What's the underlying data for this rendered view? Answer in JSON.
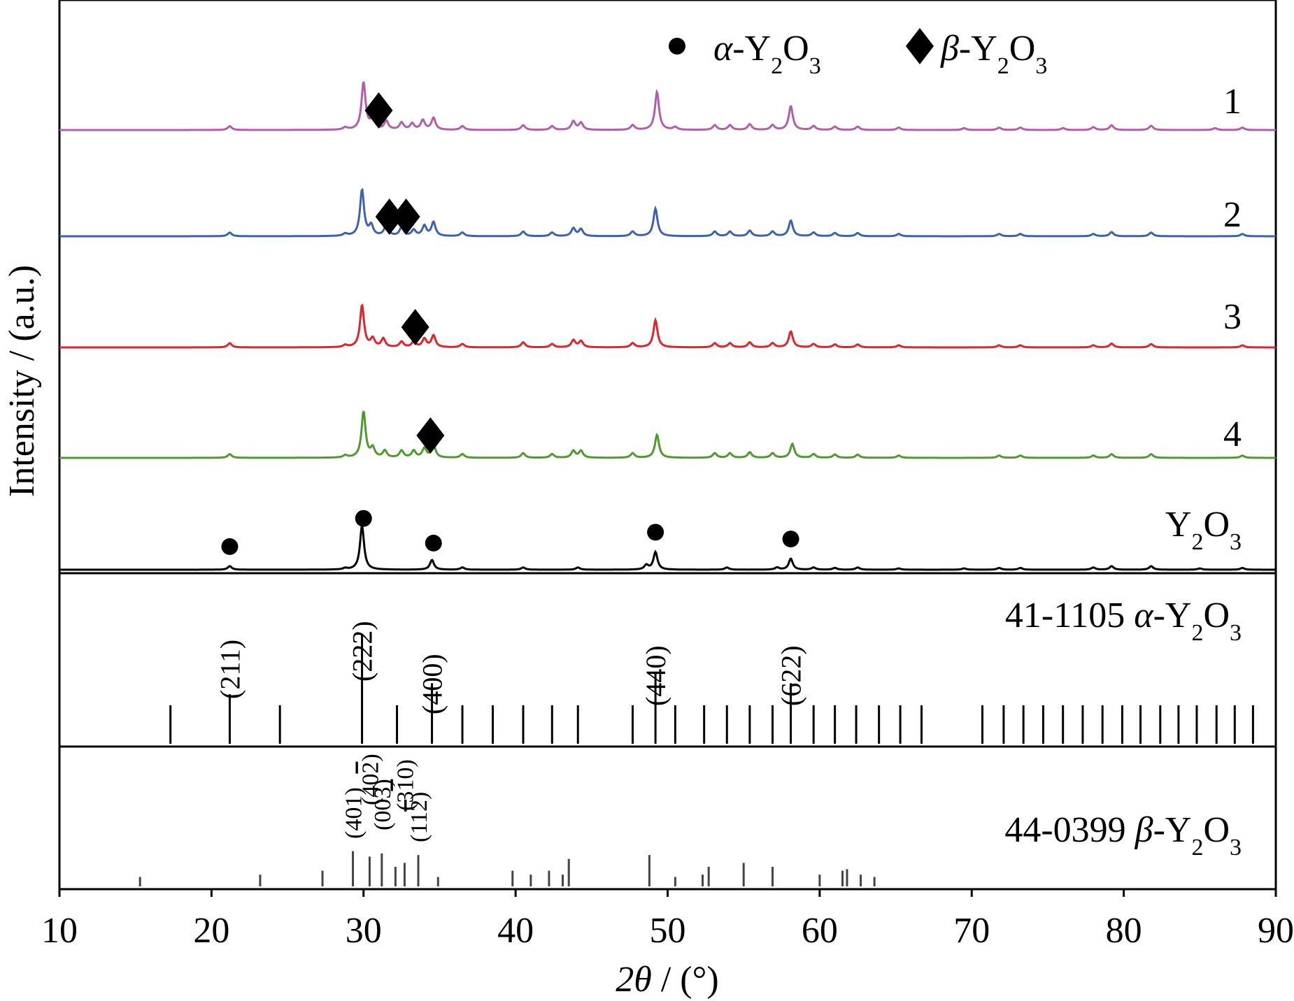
{
  "chart_data": {
    "type": "line",
    "title": "",
    "xlabel_prefix": "2",
    "xlabel_symbol": "θ",
    "xlabel_suffix": " / (°)",
    "ylabel": "Intensity / (a.u.)",
    "xlim": [
      10,
      90
    ],
    "xticks": [
      10,
      20,
      30,
      40,
      50,
      60,
      70,
      80,
      90
    ],
    "legend": {
      "position": "top-center",
      "entries": [
        {
          "marker": "circle",
          "symbol": "α",
          "text": "-Y",
          "sub1": "2",
          "mid": "O",
          "sub2": "3"
        },
        {
          "marker": "diamond",
          "symbol": "β",
          "text": "-Y",
          "sub1": "2",
          "mid": "O",
          "sub2": "3"
        }
      ]
    },
    "series": [
      {
        "name": "1",
        "color": "#b35ea9",
        "peaks": [
          [
            21.2,
            0.08
          ],
          [
            28.8,
            0.05
          ],
          [
            30.0,
            1.0
          ],
          [
            30.6,
            0.25
          ],
          [
            31.5,
            0.18
          ],
          [
            32.5,
            0.15
          ],
          [
            33.2,
            0.13
          ],
          [
            33.9,
            0.2
          ],
          [
            34.6,
            0.25
          ],
          [
            36.5,
            0.08
          ],
          [
            40.5,
            0.1
          ],
          [
            42.4,
            0.08
          ],
          [
            43.8,
            0.18
          ],
          [
            44.3,
            0.15
          ],
          [
            47.7,
            0.1
          ],
          [
            49.3,
            0.8
          ],
          [
            50.5,
            0.06
          ],
          [
            53.1,
            0.1
          ],
          [
            54.1,
            0.1
          ],
          [
            55.4,
            0.12
          ],
          [
            56.9,
            0.1
          ],
          [
            58.1,
            0.5
          ],
          [
            59.6,
            0.08
          ],
          [
            61.0,
            0.07
          ],
          [
            62.5,
            0.07
          ],
          [
            65.2,
            0.05
          ],
          [
            69.5,
            0.04
          ],
          [
            71.8,
            0.05
          ],
          [
            73.2,
            0.05
          ],
          [
            76.0,
            0.04
          ],
          [
            78.0,
            0.06
          ],
          [
            79.2,
            0.1
          ],
          [
            81.8,
            0.09
          ],
          [
            86.0,
            0.04
          ],
          [
            87.8,
            0.05
          ]
        ],
        "markers": [
          {
            "type": "diamond",
            "x": 31.0
          }
        ]
      },
      {
        "name": "2",
        "color": "#3d62ad",
        "peaks": [
          [
            21.2,
            0.08
          ],
          [
            28.8,
            0.05
          ],
          [
            29.9,
            1.0
          ],
          [
            30.5,
            0.22
          ],
          [
            31.5,
            0.25
          ],
          [
            32.5,
            0.18
          ],
          [
            33.3,
            0.13
          ],
          [
            34.0,
            0.22
          ],
          [
            34.6,
            0.3
          ],
          [
            36.5,
            0.08
          ],
          [
            40.5,
            0.1
          ],
          [
            42.4,
            0.08
          ],
          [
            43.8,
            0.17
          ],
          [
            44.3,
            0.15
          ],
          [
            47.7,
            0.1
          ],
          [
            49.2,
            0.6
          ],
          [
            53.1,
            0.1
          ],
          [
            54.1,
            0.1
          ],
          [
            55.4,
            0.12
          ],
          [
            56.9,
            0.1
          ],
          [
            58.1,
            0.34
          ],
          [
            59.6,
            0.08
          ],
          [
            61.0,
            0.07
          ],
          [
            62.5,
            0.07
          ],
          [
            65.2,
            0.05
          ],
          [
            71.8,
            0.05
          ],
          [
            73.2,
            0.05
          ],
          [
            78.0,
            0.05
          ],
          [
            79.2,
            0.09
          ],
          [
            81.8,
            0.08
          ],
          [
            87.8,
            0.05
          ]
        ],
        "markers": [
          {
            "type": "diamond",
            "x": 31.7
          },
          {
            "type": "diamond",
            "x": 32.8
          }
        ]
      },
      {
        "name": "3",
        "color": "#e1242c",
        "peaks": [
          [
            21.2,
            0.1
          ],
          [
            28.8,
            0.05
          ],
          [
            29.9,
            1.0
          ],
          [
            30.6,
            0.2
          ],
          [
            31.3,
            0.2
          ],
          [
            32.5,
            0.13
          ],
          [
            33.3,
            0.13
          ],
          [
            34.0,
            0.2
          ],
          [
            34.6,
            0.28
          ],
          [
            36.5,
            0.08
          ],
          [
            40.5,
            0.12
          ],
          [
            42.4,
            0.08
          ],
          [
            43.8,
            0.17
          ],
          [
            44.3,
            0.15
          ],
          [
            47.7,
            0.1
          ],
          [
            49.2,
            0.65
          ],
          [
            53.1,
            0.1
          ],
          [
            54.1,
            0.1
          ],
          [
            55.4,
            0.12
          ],
          [
            56.9,
            0.1
          ],
          [
            58.1,
            0.38
          ],
          [
            59.6,
            0.08
          ],
          [
            61.0,
            0.07
          ],
          [
            62.5,
            0.07
          ],
          [
            65.2,
            0.05
          ],
          [
            71.8,
            0.05
          ],
          [
            73.2,
            0.05
          ],
          [
            78.0,
            0.05
          ],
          [
            79.2,
            0.09
          ],
          [
            81.8,
            0.08
          ],
          [
            87.8,
            0.05
          ]
        ],
        "markers": [
          {
            "type": "diamond",
            "x": 33.4
          }
        ]
      },
      {
        "name": "4",
        "color": "#4f9a2c",
        "peaks": [
          [
            21.2,
            0.08
          ],
          [
            28.8,
            0.05
          ],
          [
            30.0,
            1.0
          ],
          [
            30.6,
            0.2
          ],
          [
            31.4,
            0.15
          ],
          [
            32.5,
            0.15
          ],
          [
            33.3,
            0.15
          ],
          [
            34.0,
            0.2
          ],
          [
            34.6,
            0.28
          ],
          [
            36.5,
            0.08
          ],
          [
            40.5,
            0.1
          ],
          [
            42.4,
            0.08
          ],
          [
            43.8,
            0.15
          ],
          [
            44.3,
            0.15
          ],
          [
            47.7,
            0.1
          ],
          [
            49.3,
            0.5
          ],
          [
            53.1,
            0.1
          ],
          [
            54.1,
            0.1
          ],
          [
            55.4,
            0.12
          ],
          [
            56.9,
            0.1
          ],
          [
            58.2,
            0.3
          ],
          [
            59.6,
            0.08
          ],
          [
            61.0,
            0.07
          ],
          [
            62.5,
            0.07
          ],
          [
            65.2,
            0.05
          ],
          [
            71.8,
            0.05
          ],
          [
            73.2,
            0.05
          ],
          [
            78.0,
            0.05
          ],
          [
            79.2,
            0.08
          ],
          [
            81.8,
            0.08
          ],
          [
            87.8,
            0.05
          ]
        ],
        "markers": [
          {
            "type": "diamond",
            "x": 34.4
          }
        ]
      },
      {
        "name": "Y",
        "name_sub1": "2",
        "name_mid": "O",
        "name_sub2": "3",
        "color": "#000000",
        "peaks": [
          [
            21.2,
            0.08
          ],
          [
            28.8,
            0.03
          ],
          [
            29.9,
            1.0
          ],
          [
            34.5,
            0.22
          ],
          [
            36.5,
            0.05
          ],
          [
            40.5,
            0.05
          ],
          [
            44.1,
            0.05
          ],
          [
            48.6,
            0.1
          ],
          [
            49.2,
            0.4
          ],
          [
            53.9,
            0.05
          ],
          [
            57.2,
            0.05
          ],
          [
            58.1,
            0.25
          ],
          [
            59.6,
            0.05
          ],
          [
            61.0,
            0.04
          ],
          [
            62.5,
            0.05
          ],
          [
            65.2,
            0.03
          ],
          [
            69.5,
            0.03
          ],
          [
            71.8,
            0.04
          ],
          [
            73.2,
            0.04
          ],
          [
            78.0,
            0.05
          ],
          [
            79.2,
            0.08
          ],
          [
            81.8,
            0.08
          ],
          [
            85.0,
            0.03
          ],
          [
            87.8,
            0.04
          ]
        ],
        "markers": [
          {
            "type": "circle",
            "x": 21.2
          },
          {
            "type": "circle",
            "x": 30.0
          },
          {
            "type": "circle",
            "x": 34.6
          },
          {
            "type": "circle",
            "x": 49.2
          },
          {
            "type": "circle",
            "x": 58.1
          }
        ]
      }
    ],
    "references": [
      {
        "code": "41-1105",
        "symbol": "α",
        "text": "-Y",
        "sub1": "2",
        "mid": "O",
        "sub2": "3",
        "lines": [
          [
            17.3,
            0.35
          ],
          [
            21.2,
            0.45
          ],
          [
            24.5,
            0.35
          ],
          [
            29.9,
            1.0
          ],
          [
            32.2,
            0.35
          ],
          [
            34.5,
            0.55
          ],
          [
            36.5,
            0.35
          ],
          [
            38.5,
            0.35
          ],
          [
            40.5,
            0.35
          ],
          [
            42.4,
            0.35
          ],
          [
            44.1,
            0.35
          ],
          [
            47.7,
            0.35
          ],
          [
            49.2,
            0.65
          ],
          [
            50.5,
            0.35
          ],
          [
            52.4,
            0.35
          ],
          [
            53.9,
            0.35
          ],
          [
            55.4,
            0.35
          ],
          [
            56.9,
            0.35
          ],
          [
            58.1,
            0.55
          ],
          [
            59.6,
            0.35
          ],
          [
            61.0,
            0.35
          ],
          [
            62.4,
            0.35
          ],
          [
            63.9,
            0.35
          ],
          [
            65.3,
            0.35
          ],
          [
            66.7,
            0.35
          ],
          [
            70.7,
            0.35
          ],
          [
            72.1,
            0.35
          ],
          [
            73.4,
            0.35
          ],
          [
            74.7,
            0.35
          ],
          [
            76.0,
            0.35
          ],
          [
            77.3,
            0.35
          ],
          [
            78.6,
            0.35
          ],
          [
            79.9,
            0.35
          ],
          [
            81.1,
            0.35
          ],
          [
            82.4,
            0.35
          ],
          [
            83.6,
            0.35
          ],
          [
            84.8,
            0.35
          ],
          [
            86.1,
            0.35
          ],
          [
            87.3,
            0.35
          ],
          [
            88.5,
            0.35
          ]
        ],
        "hkl": [
          {
            "label": "(211)",
            "x": 21.2
          },
          {
            "label": "(222)",
            "x": 29.9
          },
          {
            "label": "(400)",
            "x": 34.5
          },
          {
            "label": "(440)",
            "x": 49.2
          },
          {
            "label": "(622)",
            "x": 58.1
          }
        ]
      },
      {
        "code": "44-0399",
        "symbol": "β",
        "text": "-Y",
        "sub1": "2",
        "mid": "O",
        "sub2": "3",
        "lines": [
          [
            15.3,
            0.12
          ],
          [
            23.2,
            0.15
          ],
          [
            27.3,
            0.2
          ],
          [
            29.3,
            0.45
          ],
          [
            30.4,
            0.38
          ],
          [
            31.2,
            0.42
          ],
          [
            32.1,
            0.25
          ],
          [
            32.7,
            0.3
          ],
          [
            33.6,
            0.4
          ],
          [
            34.9,
            0.12
          ],
          [
            39.8,
            0.2
          ],
          [
            41.0,
            0.15
          ],
          [
            42.2,
            0.2
          ],
          [
            43.1,
            0.15
          ],
          [
            43.5,
            0.35
          ],
          [
            48.8,
            0.4
          ],
          [
            50.5,
            0.12
          ],
          [
            52.3,
            0.15
          ],
          [
            52.7,
            0.25
          ],
          [
            55.0,
            0.3
          ],
          [
            56.9,
            0.25
          ],
          [
            60.0,
            0.15
          ],
          [
            61.5,
            0.2
          ],
          [
            61.8,
            0.22
          ],
          [
            62.7,
            0.15
          ],
          [
            63.6,
            0.12
          ]
        ],
        "hkl": [
          {
            "label": "(401)",
            "x": 29.3
          },
          {
            "label": "(40",
            "bar": "2",
            "close": ")",
            "x": 30.4
          },
          {
            "label": "(003)",
            "x": 31.2
          },
          {
            "label": "(3",
            "bar": "1",
            "close": "0)",
            "x": 32.7
          },
          {
            "label": "(11",
            "bar": "2",
            "close": ")",
            "x": 33.6
          }
        ]
      }
    ]
  }
}
